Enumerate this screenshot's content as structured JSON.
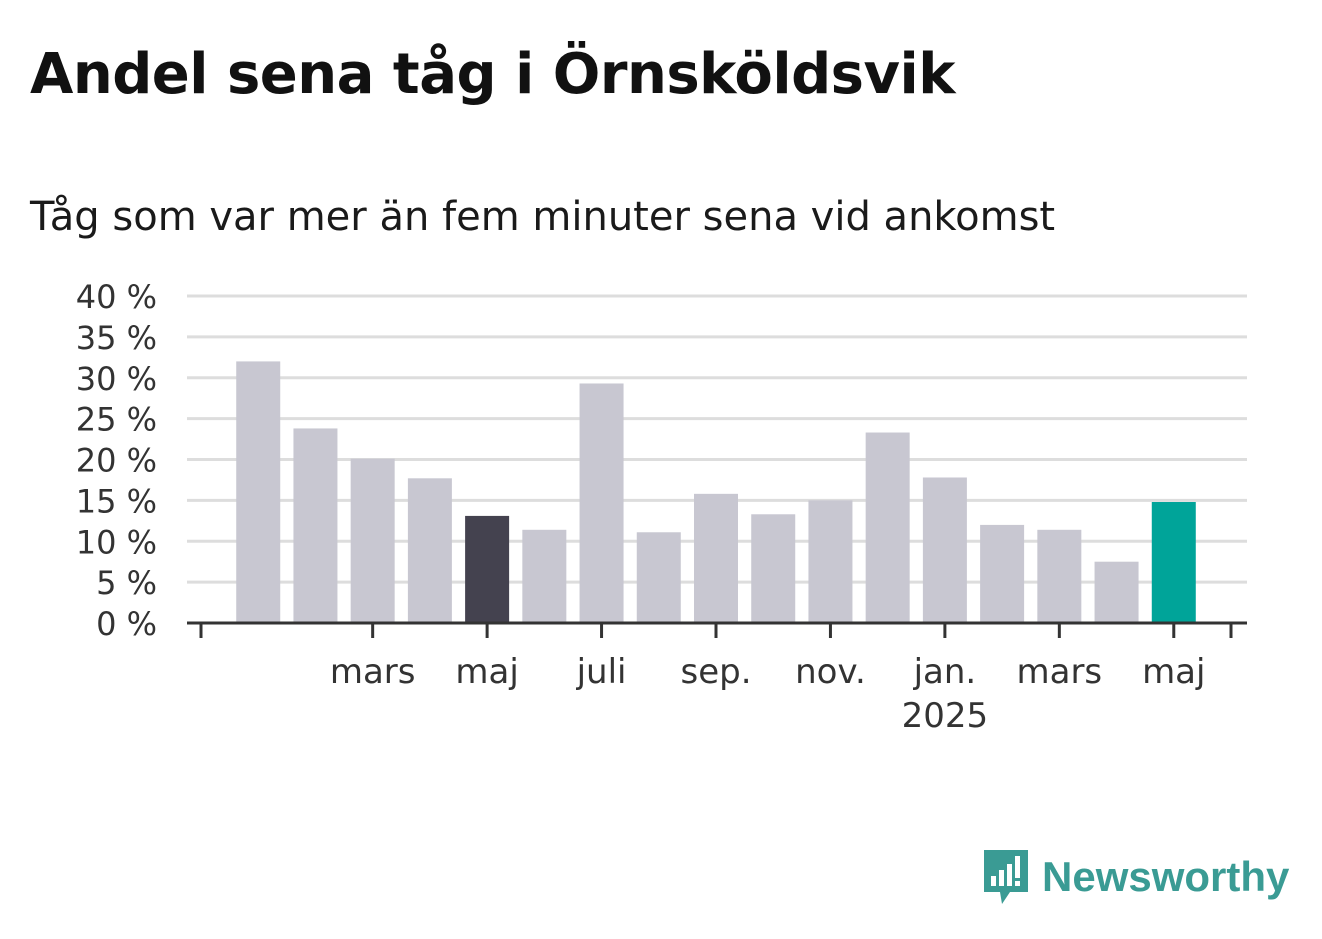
{
  "colors": {
    "bar": "#c8c7d1",
    "bar_highlight_dark": "#44424f",
    "bar_highlight_current": "#00a499",
    "grid": "#dddddd",
    "axis": "#333333",
    "brand": "#3a9b94"
  },
  "brand": {
    "name": "Newsworthy",
    "icon": "chart-speech-bubble-icon"
  },
  "chart_data": {
    "type": "bar",
    "title": "Andel sena tåg i Örnsköldsvik",
    "subtitle": "Tåg som var mer än fem minuter sena vid ankomst",
    "xlabel": "",
    "ylabel": "",
    "ylim": [
      0,
      40
    ],
    "yticks": [
      0,
      5,
      10,
      15,
      20,
      25,
      30,
      35,
      40
    ],
    "ytick_labels": [
      "0 %",
      "5 %",
      "10 %",
      "15 %",
      "20 %",
      "25 %",
      "30 %",
      "35 %",
      "40 %"
    ],
    "grid": true,
    "x": [
      "2024-01",
      "2024-02",
      "2024-03",
      "2024-04",
      "2024-05",
      "2024-06",
      "2024-07",
      "2024-08",
      "2024-09",
      "2024-10",
      "2024-11",
      "2024-12",
      "2025-01",
      "2025-02",
      "2025-03",
      "2025-04",
      "2025-05"
    ],
    "values": [
      32.0,
      23.8,
      20.1,
      17.7,
      13.1,
      11.4,
      29.3,
      11.1,
      15.8,
      13.3,
      15.0,
      23.3,
      17.8,
      12.0,
      11.4,
      7.5,
      14.8
    ],
    "highlights": {
      "4": "bar_highlight_dark",
      "16": "bar_highlight_current"
    },
    "xtick_labels": [
      {
        "month": "2024-03",
        "label": "mars",
        "year": ""
      },
      {
        "month": "2024-05",
        "label": "maj",
        "year": ""
      },
      {
        "month": "2024-07",
        "label": "juli",
        "year": ""
      },
      {
        "month": "2024-09",
        "label": "sep.",
        "year": ""
      },
      {
        "month": "2024-11",
        "label": "nov.",
        "year": ""
      },
      {
        "month": "2025-01",
        "label": "jan.",
        "year": "2025"
      },
      {
        "month": "2025-03",
        "label": "mars",
        "year": ""
      },
      {
        "month": "2025-05",
        "label": "maj",
        "year": ""
      }
    ]
  }
}
